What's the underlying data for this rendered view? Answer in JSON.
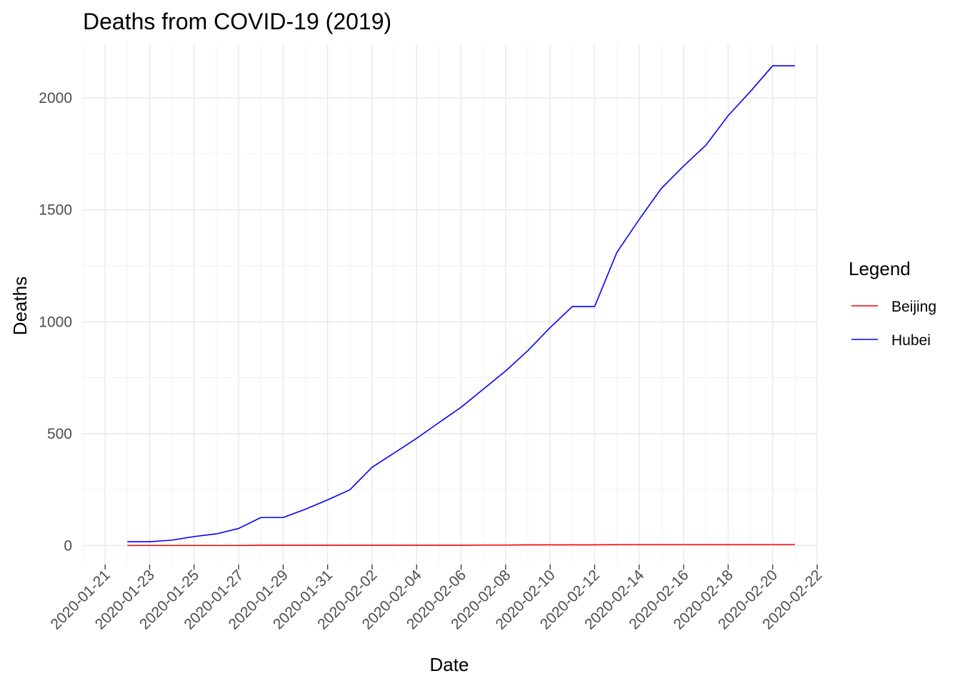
{
  "chart_data": {
    "type": "line",
    "title": "Deaths from COVID-19 (2019)",
    "xlabel": "Date",
    "ylabel": "Deaths",
    "xlim": [
      "2020-01-20",
      "2020-02-22"
    ],
    "ylim": [
      -85,
      2240
    ],
    "x_ticks": [
      "2020-01-21",
      "2020-01-23",
      "2020-01-25",
      "2020-01-27",
      "2020-01-29",
      "2020-01-31",
      "2020-02-02",
      "2020-02-04",
      "2020-02-06",
      "2020-02-08",
      "2020-02-10",
      "2020-02-12",
      "2020-02-14",
      "2020-02-16",
      "2020-02-18",
      "2020-02-20",
      "2020-02-22"
    ],
    "y_ticks": [
      0,
      500,
      1000,
      1500,
      2000
    ],
    "grid": true,
    "legend": {
      "title": "Legend",
      "placement": "right"
    },
    "x": [
      "2020-01-22",
      "2020-01-23",
      "2020-01-24",
      "2020-01-25",
      "2020-01-26",
      "2020-01-27",
      "2020-01-28",
      "2020-01-29",
      "2020-01-30",
      "2020-01-31",
      "2020-02-01",
      "2020-02-02",
      "2020-02-03",
      "2020-02-04",
      "2020-02-05",
      "2020-02-06",
      "2020-02-07",
      "2020-02-08",
      "2020-02-09",
      "2020-02-10",
      "2020-02-11",
      "2020-02-12",
      "2020-02-13",
      "2020-02-14",
      "2020-02-15",
      "2020-02-16",
      "2020-02-17",
      "2020-02-18",
      "2020-02-19",
      "2020-02-20",
      "2020-02-21"
    ],
    "series": [
      {
        "name": "Beijing",
        "color": "#ff0000",
        "values": [
          0,
          0,
          0,
          0,
          0,
          0,
          1,
          1,
          1,
          1,
          1,
          1,
          1,
          1,
          1,
          1,
          2,
          2,
          3,
          3,
          3,
          3,
          4,
          4,
          4,
          4,
          4,
          4,
          4,
          4,
          4
        ]
      },
      {
        "name": "Hubei",
        "color": "#0000ff",
        "values": [
          17,
          17,
          24,
          40,
          52,
          76,
          125,
          125,
          162,
          204,
          249,
          350,
          414,
          479,
          549,
          618,
          699,
          780,
          871,
          974,
          1068,
          1068,
          1310,
          1457,
          1596,
          1696,
          1789,
          1921,
          2029,
          2144,
          2144
        ]
      }
    ]
  }
}
